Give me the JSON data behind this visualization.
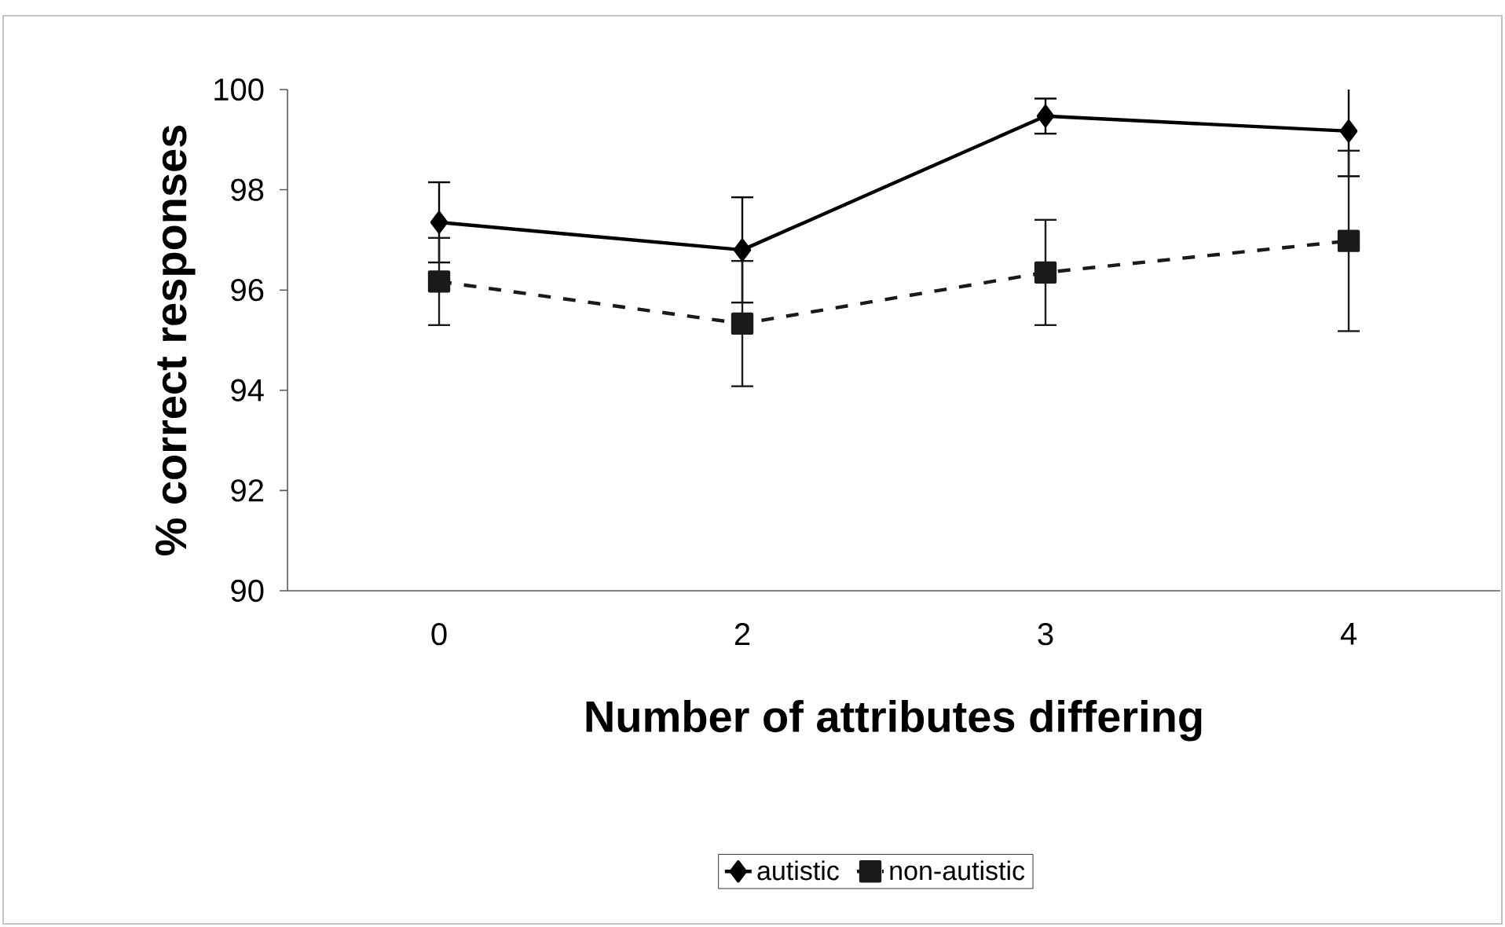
{
  "chart_data": {
    "type": "line",
    "xlabel": "Number of attributes differing",
    "ylabel": "% correct responses",
    "categories": [
      "0",
      "2",
      "3",
      "4"
    ],
    "series": [
      {
        "name": "autistic",
        "color": "#000000",
        "marker": "diamond",
        "line_style": "solid",
        "values": [
          97.35,
          96.8,
          99.47,
          99.17
        ],
        "errors": [
          0.8,
          1.05,
          0.35,
          0.9
        ]
      },
      {
        "name": "non-autistic",
        "color": "#1a1a1a",
        "marker": "square",
        "line_style": "dashed",
        "values": [
          96.17,
          95.33,
          96.35,
          96.98
        ],
        "errors": [
          0.87,
          1.25,
          1.05,
          1.8
        ]
      }
    ],
    "ylim": [
      90,
      100
    ],
    "yticks": [
      90,
      92,
      94,
      96,
      98,
      100
    ],
    "grid": false,
    "legend": "bottom"
  }
}
